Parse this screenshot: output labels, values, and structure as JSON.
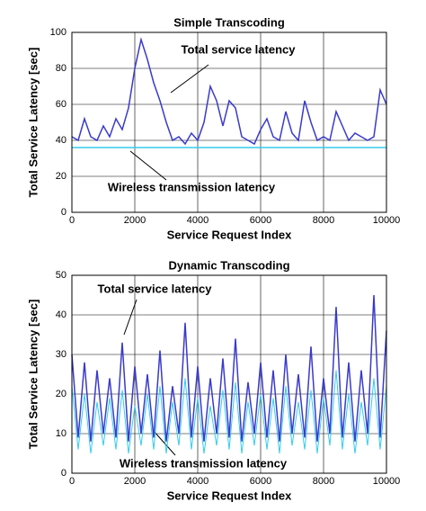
{
  "chart_data": [
    {
      "type": "line",
      "title": "Simple Transcoding",
      "xlabel": "Service Request Index",
      "ylabel": "Total Service Latency [sec]",
      "xlim": [
        0,
        10000
      ],
      "xticks": [
        0,
        2000,
        4000,
        6000,
        8000,
        10000
      ],
      "ylim": [
        0,
        100
      ],
      "yticks": [
        0,
        20,
        40,
        60,
        80,
        100
      ],
      "grid": true,
      "x": [
        0,
        200,
        400,
        600,
        800,
        1000,
        1200,
        1400,
        1600,
        1800,
        2000,
        2200,
        2400,
        2600,
        2800,
        3000,
        3200,
        3400,
        3600,
        3800,
        4000,
        4200,
        4400,
        4600,
        4800,
        5000,
        5200,
        5400,
        5600,
        5800,
        6000,
        6200,
        6400,
        6600,
        6800,
        7000,
        7200,
        7400,
        7600,
        7800,
        8000,
        8200,
        8400,
        8600,
        8800,
        9000,
        9200,
        9400,
        9600,
        9800,
        10000
      ],
      "series": [
        {
          "name": "Total service latency",
          "color": "#3a3acc",
          "values": [
            42,
            40,
            52,
            42,
            40,
            48,
            42,
            52,
            46,
            58,
            80,
            96,
            85,
            72,
            62,
            50,
            40,
            42,
            38,
            44,
            40,
            50,
            70,
            62,
            48,
            62,
            58,
            42,
            40,
            38,
            46,
            52,
            42,
            40,
            56,
            44,
            40,
            62,
            50,
            40,
            42,
            40,
            56,
            48,
            40,
            44,
            42,
            40,
            42,
            68,
            60
          ]
        },
        {
          "name": "Wireless transmission latency",
          "color": "#33ccee",
          "x": [
            0,
            10000
          ],
          "values": [
            36,
            36
          ]
        }
      ],
      "annotations": [
        {
          "text": "Total service latency",
          "color": "#3a3acc"
        },
        {
          "text": "Wireless transmission latency",
          "color": "#000000"
        }
      ]
    },
    {
      "type": "line",
      "title": "Dynamic Transcoding",
      "xlabel": "Service Request Index",
      "ylabel": "Total Service Latency [sec]",
      "xlim": [
        0,
        10000
      ],
      "xticks": [
        0,
        2000,
        4000,
        6000,
        8000,
        10000
      ],
      "ylim": [
        0,
        50
      ],
      "yticks": [
        0,
        10,
        20,
        30,
        40,
        50
      ],
      "grid": true,
      "x": [
        0,
        200,
        400,
        600,
        800,
        1000,
        1200,
        1400,
        1600,
        1800,
        2000,
        2200,
        2400,
        2600,
        2800,
        3000,
        3200,
        3400,
        3600,
        3800,
        4000,
        4200,
        4400,
        4600,
        4800,
        5000,
        5200,
        5400,
        5600,
        5800,
        6000,
        6200,
        6400,
        6600,
        6800,
        7000,
        7200,
        7400,
        7600,
        7800,
        8000,
        8200,
        8400,
        8600,
        8800,
        9000,
        9200,
        9400,
        9600,
        9800,
        10000
      ],
      "series": [
        {
          "name": "Total service latency",
          "color": "#3a3acc",
          "values": [
            30,
            9,
            28,
            8,
            26,
            10,
            24,
            9,
            33,
            8,
            27,
            10,
            25,
            9,
            31,
            8,
            22,
            10,
            38,
            9,
            27,
            8,
            24,
            10,
            29,
            9,
            34,
            8,
            23,
            10,
            28,
            9,
            26,
            8,
            30,
            10,
            25,
            9,
            32,
            8,
            24,
            10,
            42,
            9,
            28,
            8,
            26,
            10,
            45,
            9,
            36
          ]
        },
        {
          "name": "Wireless transmission latency",
          "color": "#33ccee",
          "values": [
            22,
            6,
            20,
            5,
            18,
            7,
            19,
            6,
            21,
            5,
            17,
            7,
            20,
            6,
            22,
            5,
            18,
            7,
            24,
            6,
            19,
            5,
            17,
            7,
            21,
            6,
            23,
            5,
            18,
            7,
            20,
            6,
            19,
            5,
            22,
            7,
            18,
            6,
            21,
            5,
            19,
            7,
            26,
            6,
            20,
            5,
            18,
            7,
            24,
            6,
            22
          ]
        }
      ],
      "annotations": [
        {
          "text": "Total service latency",
          "color": "#3a3acc"
        },
        {
          "text": "Wireless transmission latency",
          "color": "#000000"
        }
      ]
    }
  ]
}
